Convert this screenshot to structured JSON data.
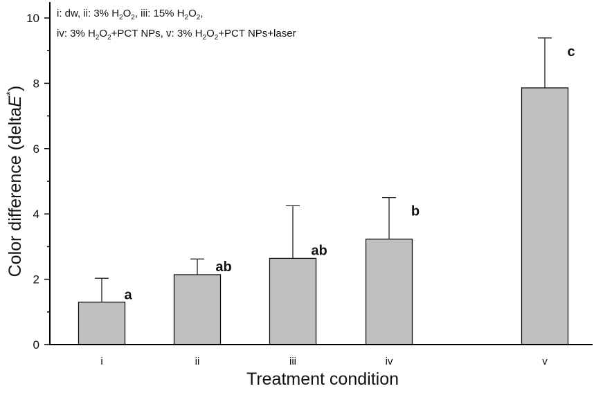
{
  "chart_data": {
    "type": "bar",
    "categories": [
      "i",
      "ii",
      "iii",
      "iv",
      "v"
    ],
    "values": [
      1.3,
      2.14,
      2.64,
      3.23,
      7.86
    ],
    "error_upper": [
      0.73,
      0.48,
      1.61,
      1.27,
      1.53
    ],
    "significance_labels": [
      "a",
      "ab",
      "ab",
      "b",
      "c"
    ],
    "xlabel": "Treatment condition",
    "ylabel": "Color difference (deltaE*)",
    "ylim": [
      0,
      10
    ],
    "yticks": [
      "0",
      "2",
      "4",
      "6",
      "8",
      "10"
    ],
    "grid": false,
    "bar_color": "#c0c0c0",
    "legend_position": "top-left",
    "annotation_lines": [
      "i: dw,  ii: 3% H2O2,  iii: 15% H2O2,",
      "iv: 3% H2O2+PCT NPs,  v: 3% H2O2+PCT NPs+laser"
    ]
  }
}
